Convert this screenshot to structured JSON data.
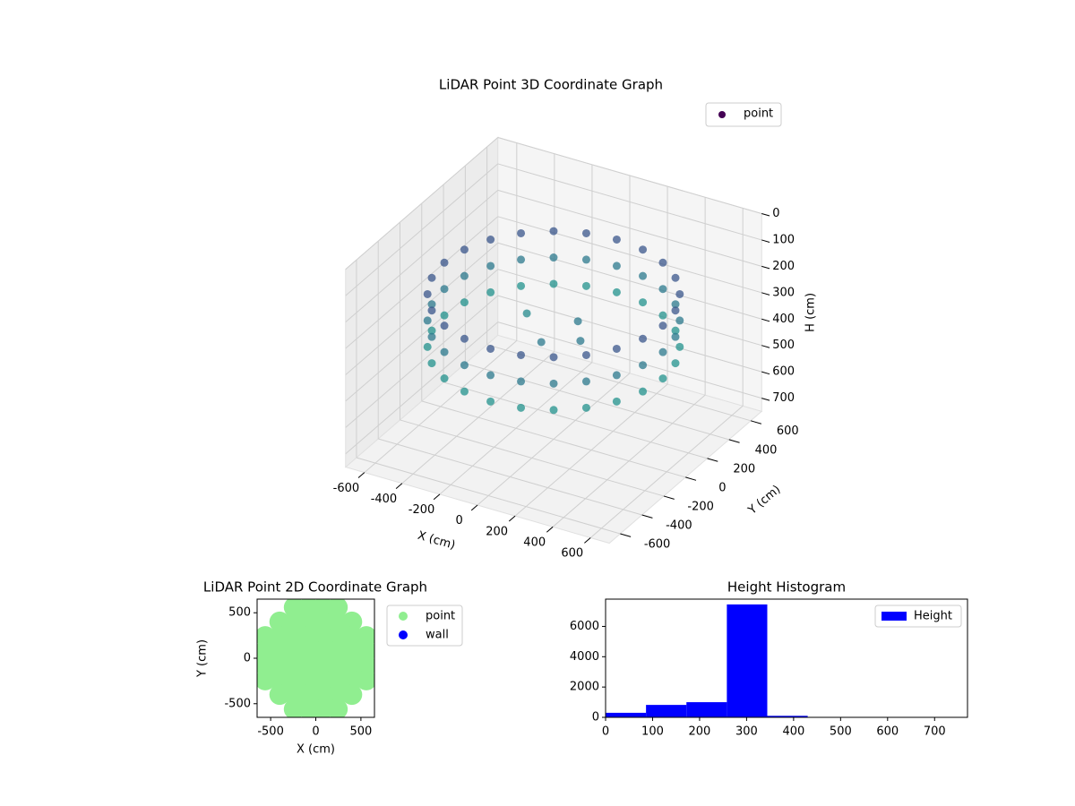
{
  "chart_data": [
    {
      "type": "scatter3d",
      "title": "LiDAR Point 3D Coordinate Graph",
      "xlabel": "X (cm)",
      "ylabel": "Y (cm)",
      "zlabel": "H (cm)",
      "xlim": [
        -700,
        700
      ],
      "ylim": [
        -700,
        700
      ],
      "zlim": [
        0,
        750
      ],
      "z_inverted": true,
      "xticks": [
        -600,
        -400,
        -200,
        0,
        200,
        400,
        600
      ],
      "yticks": [
        -600,
        -400,
        -200,
        0,
        200,
        400,
        600
      ],
      "zticks": [
        0,
        100,
        200,
        300,
        400,
        500,
        600,
        700
      ],
      "grid": true,
      "legend": "upper right",
      "cmap": [
        "#440154",
        "#3b528b",
        "#21918c"
      ],
      "series": [
        {
          "name": "point",
          "color": "#440154",
          "x": [
            580,
            580,
            580,
            560,
            560,
            560,
            502,
            502,
            502,
            410,
            410,
            410,
            290,
            290,
            290,
            150,
            150,
            150,
            0,
            0,
            0,
            -150,
            -150,
            -150,
            -290,
            -290,
            -290,
            -410,
            -410,
            -410,
            -502,
            -502,
            -502,
            -560,
            -560,
            -560,
            -580,
            -580,
            -580,
            -560,
            -560,
            -560,
            -502,
            -502,
            -502,
            -410,
            -410,
            -410,
            -290,
            -290,
            -290,
            -150,
            -150,
            -150,
            0,
            0,
            0,
            150,
            150,
            150,
            290,
            290,
            290,
            410,
            410,
            410,
            502,
            502,
            502,
            560,
            560,
            560,
            100,
            200,
            -200,
            50
          ],
          "y": [
            0,
            0,
            0,
            150,
            150,
            150,
            290,
            290,
            290,
            410,
            410,
            410,
            502,
            502,
            502,
            560,
            560,
            560,
            580,
            580,
            580,
            560,
            560,
            560,
            502,
            502,
            502,
            410,
            410,
            410,
            290,
            290,
            290,
            150,
            150,
            150,
            0,
            0,
            0,
            -150,
            -150,
            -150,
            -290,
            -290,
            -290,
            -410,
            -410,
            -410,
            -502,
            -502,
            -502,
            -560,
            -560,
            -560,
            -580,
            -580,
            -580,
            -560,
            -560,
            -560,
            -502,
            -502,
            -502,
            -410,
            -410,
            -410,
            -290,
            -290,
            -290,
            -150,
            -150,
            -150,
            50,
            -100,
            100,
            -200
          ],
          "z": [
            200,
            300,
            400,
            200,
            300,
            400,
            200,
            300,
            400,
            200,
            300,
            400,
            200,
            300,
            400,
            200,
            300,
            400,
            200,
            300,
            400,
            200,
            300,
            400,
            200,
            300,
            400,
            200,
            300,
            400,
            200,
            300,
            400,
            200,
            300,
            400,
            200,
            300,
            400,
            200,
            300,
            400,
            200,
            300,
            400,
            200,
            300,
            400,
            200,
            300,
            400,
            200,
            300,
            400,
            200,
            300,
            400,
            200,
            300,
            400,
            200,
            300,
            400,
            200,
            300,
            400,
            200,
            300,
            400,
            200,
            300,
            400,
            300,
            300,
            350,
            300
          ]
        }
      ]
    },
    {
      "type": "scatter",
      "title": "LiDAR Point 2D Coordinate Graph",
      "xlabel": "X (cm)",
      "ylabel": "Y (cm)",
      "xlim": [
        -650,
        650
      ],
      "ylim": [
        -650,
        650
      ],
      "xticks": [
        -500,
        0,
        500
      ],
      "yticks": [
        -500,
        0,
        500
      ],
      "legend": "outside right",
      "series": [
        {
          "name": "point",
          "color": "#90ee90",
          "x": [
            -240,
            -80,
            80,
            240,
            -400,
            -240,
            -80,
            80,
            240,
            400,
            -560,
            -400,
            -240,
            -80,
            80,
            240,
            400,
            560,
            -560,
            -400,
            -240,
            -80,
            80,
            240,
            400,
            560,
            -560,
            -400,
            -240,
            -80,
            80,
            240,
            400,
            560,
            -560,
            -400,
            -240,
            -80,
            80,
            240,
            400,
            560,
            -400,
            -240,
            -80,
            80,
            240,
            400,
            -240,
            -80,
            80,
            240
          ],
          "y": [
            560,
            560,
            560,
            560,
            400,
            400,
            400,
            400,
            400,
            400,
            240,
            240,
            240,
            240,
            240,
            240,
            240,
            240,
            80,
            80,
            80,
            80,
            80,
            80,
            80,
            80,
            -80,
            -80,
            -80,
            -80,
            -80,
            -80,
            -80,
            -80,
            -240,
            -240,
            -240,
            -240,
            -240,
            -240,
            -240,
            -240,
            -400,
            -400,
            -400,
            -400,
            -400,
            -400,
            -560,
            -560,
            -560,
            -560
          ]
        },
        {
          "name": "wall",
          "color": "#0000ff",
          "x": [],
          "y": []
        }
      ]
    },
    {
      "type": "histogram",
      "title": "Height Histogram",
      "bins": [
        0,
        86,
        172,
        258,
        344,
        430,
        516,
        602,
        688,
        774
      ],
      "xlim": [
        0,
        770
      ],
      "ylim": [
        0,
        7800
      ],
      "xticks": [
        0,
        100,
        200,
        300,
        400,
        500,
        600,
        700
      ],
      "yticks": [
        0,
        2000,
        4000,
        6000
      ],
      "legend": "upper right",
      "series": [
        {
          "name": "Height",
          "color": "#0000ff",
          "values": [
            300,
            820,
            1000,
            7450,
            100,
            0,
            0,
            0,
            0
          ]
        }
      ]
    }
  ]
}
